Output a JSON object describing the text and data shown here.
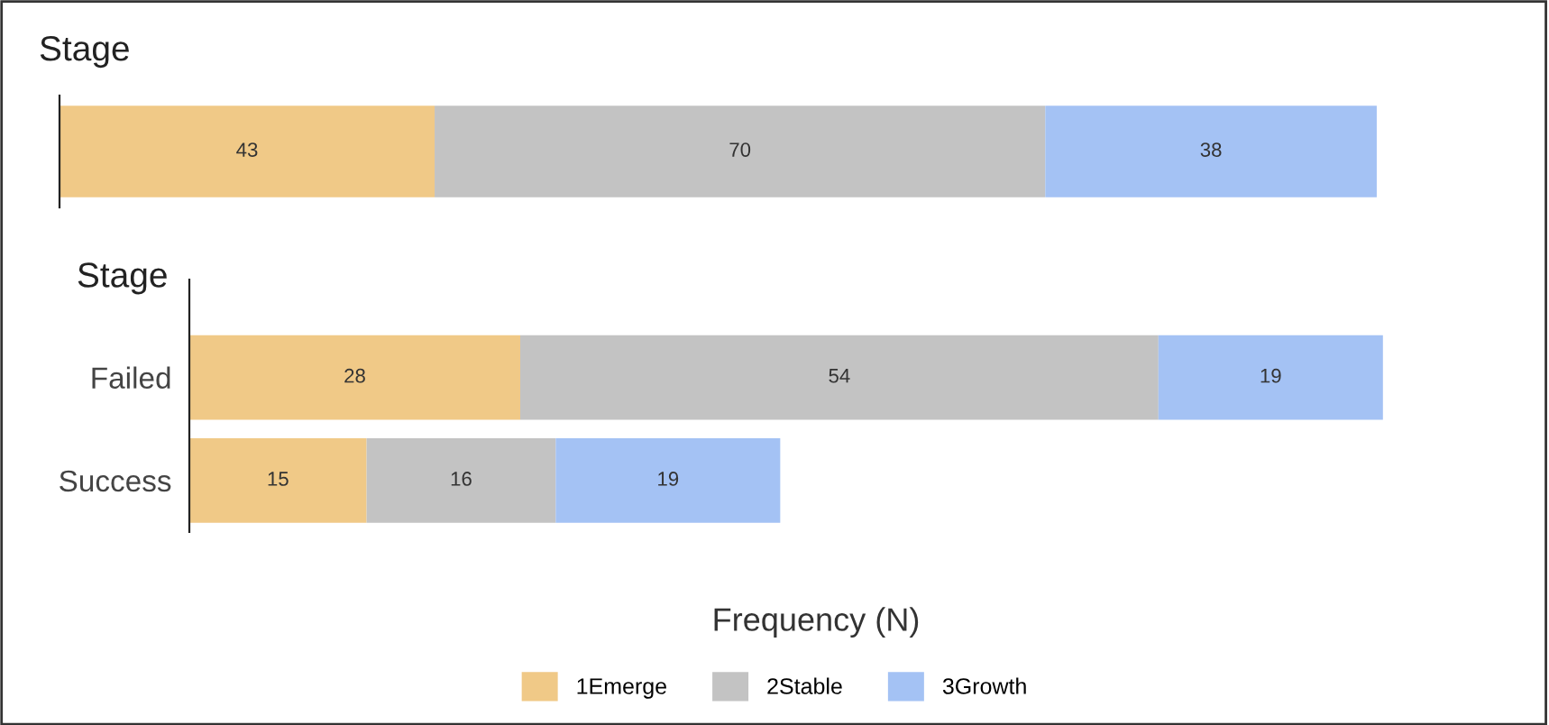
{
  "chart_data": [
    {
      "type": "bar",
      "orientation": "horizontal",
      "stacked": true,
      "title": "Stage",
      "categories": [
        null
      ],
      "data_labels": true,
      "legend": false,
      "grid": false,
      "tick_labels": false,
      "series": [
        {
          "color": "#f0c987",
          "values": [
            43
          ]
        },
        {
          "color": "#c3c3c3",
          "values": [
            70
          ]
        },
        {
          "color": "#a4c2f4",
          "values": [
            38
          ]
        }
      ]
    },
    {
      "type": "bar",
      "orientation": "horizontal",
      "stacked": true,
      "title": "Stage",
      "xlabel": "Frequency (N)",
      "categories": [
        "Failed",
        "Success"
      ],
      "data_labels": true,
      "legend": "bottom",
      "grid": false,
      "tick_labels": "y",
      "series": [
        {
          "name": "1Emerge",
          "color": "#f0c987",
          "values": [
            28,
            15
          ]
        },
        {
          "name": "2Stable",
          "color": "#c3c3c3",
          "values": [
            54,
            16
          ]
        },
        {
          "name": "3Growth",
          "color": "#a4c2f4",
          "values": [
            19,
            19
          ]
        }
      ]
    }
  ]
}
